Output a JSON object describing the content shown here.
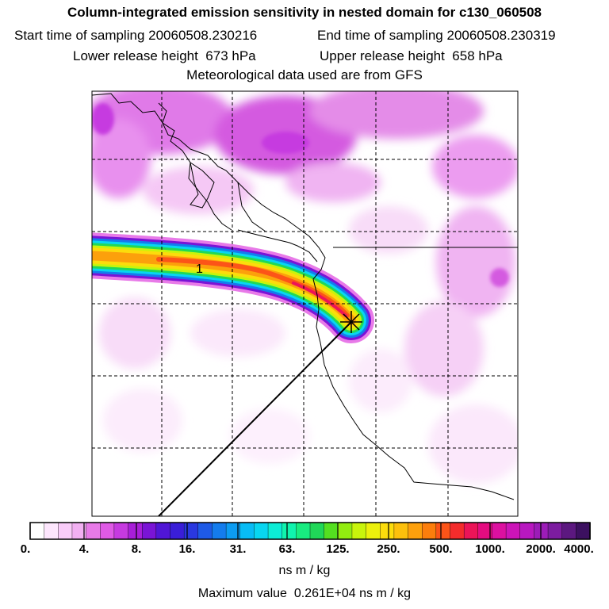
{
  "header": {
    "title": "Column-integrated emission sensitivity in nested domain for c130_060508",
    "start_label": "Start time of sampling",
    "start_value": "20060508.230216",
    "end_label": "End time of sampling",
    "end_value": "20060508.230319",
    "lower_label": "Lower release height",
    "lower_value": "673 hPa",
    "upper_label": "Upper release height",
    "upper_value": "658 hPa",
    "met_note": "Meteorological data used are from GFS"
  },
  "chart_data": {
    "type": "heatmap",
    "plume_label": "1",
    "colorbar": {
      "tick_labels": [
        "0.",
        "4.",
        "8.",
        "16.",
        "31.",
        "63.",
        "125.",
        "250.",
        "500.",
        "1000.",
        "2000.",
        "4000."
      ],
      "colors": [
        "#ffffff",
        "#fde6fd",
        "#f9ccf9",
        "#f2b0f2",
        "#e87ae8",
        "#df5ae6",
        "#c63ae0",
        "#a81ed8",
        "#7a14d6",
        "#5016d6",
        "#3a1ed8",
        "#2a38e0",
        "#1e5ae6",
        "#147ced",
        "#0c9cf2",
        "#08bcf5",
        "#08d6f0",
        "#0cecd6",
        "#10f4ae",
        "#18ec80",
        "#20d858",
        "#54e020",
        "#92ec10",
        "#c8f40c",
        "#ecf00c",
        "#fcdc0c",
        "#fcc00c",
        "#fca00c",
        "#fc7e0c",
        "#fc5418",
        "#f42c2c",
        "#ec1458",
        "#e40c80",
        "#dc10a0",
        "#cc14b8",
        "#b818c0",
        "#9c1cb8",
        "#7c1ca0",
        "#5c1880",
        "#3c1060"
      ],
      "unit": "ns m / kg"
    },
    "max_value_label": "Maximum value",
    "max_value": "0.261E+04",
    "max_value_unit": "ns m / kg"
  }
}
